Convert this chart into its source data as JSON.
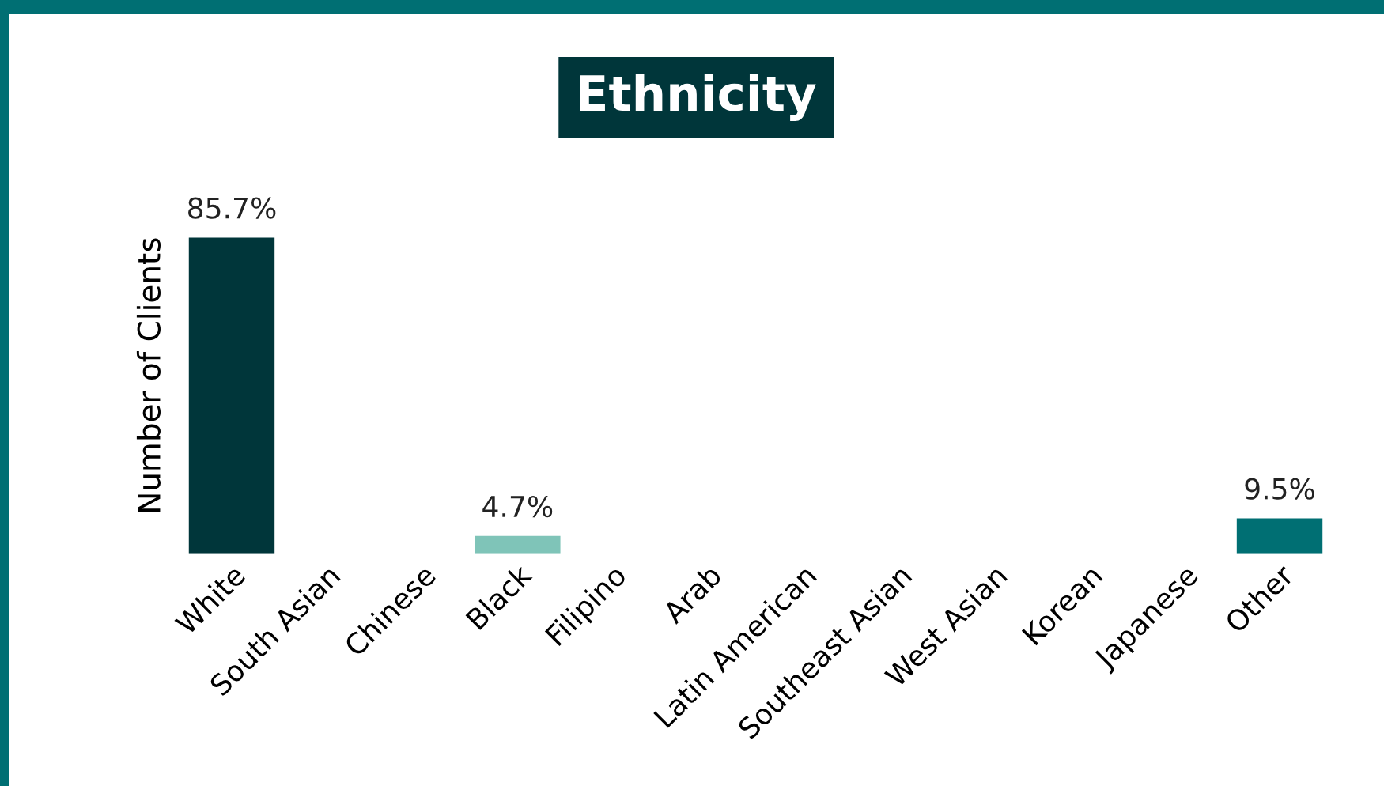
{
  "chart_data": {
    "type": "bar",
    "title": "Ethnicity",
    "ylabel": "Number of Clients",
    "categories": [
      "White",
      "South Asian",
      "Chinese",
      "Black",
      "Filipino",
      "Arab",
      "Latin American",
      "Southeast Asian",
      "West Asian",
      "Korean",
      "Japanese",
      "Other"
    ],
    "values": [
      85.7,
      0,
      0,
      4.7,
      0,
      0,
      0,
      0,
      0,
      0,
      0,
      9.5
    ],
    "value_labels": [
      "85.7%",
      null,
      null,
      "4.7%",
      null,
      null,
      null,
      null,
      null,
      null,
      null,
      "9.5%"
    ],
    "colors": [
      "#00363a",
      "#00363a",
      "#00363a",
      "#7fc4b8",
      "#00363a",
      "#00363a",
      "#00363a",
      "#00363a",
      "#00363a",
      "#00363a",
      "#00363a",
      "#006f73"
    ],
    "grid": false,
    "legend": false
  }
}
